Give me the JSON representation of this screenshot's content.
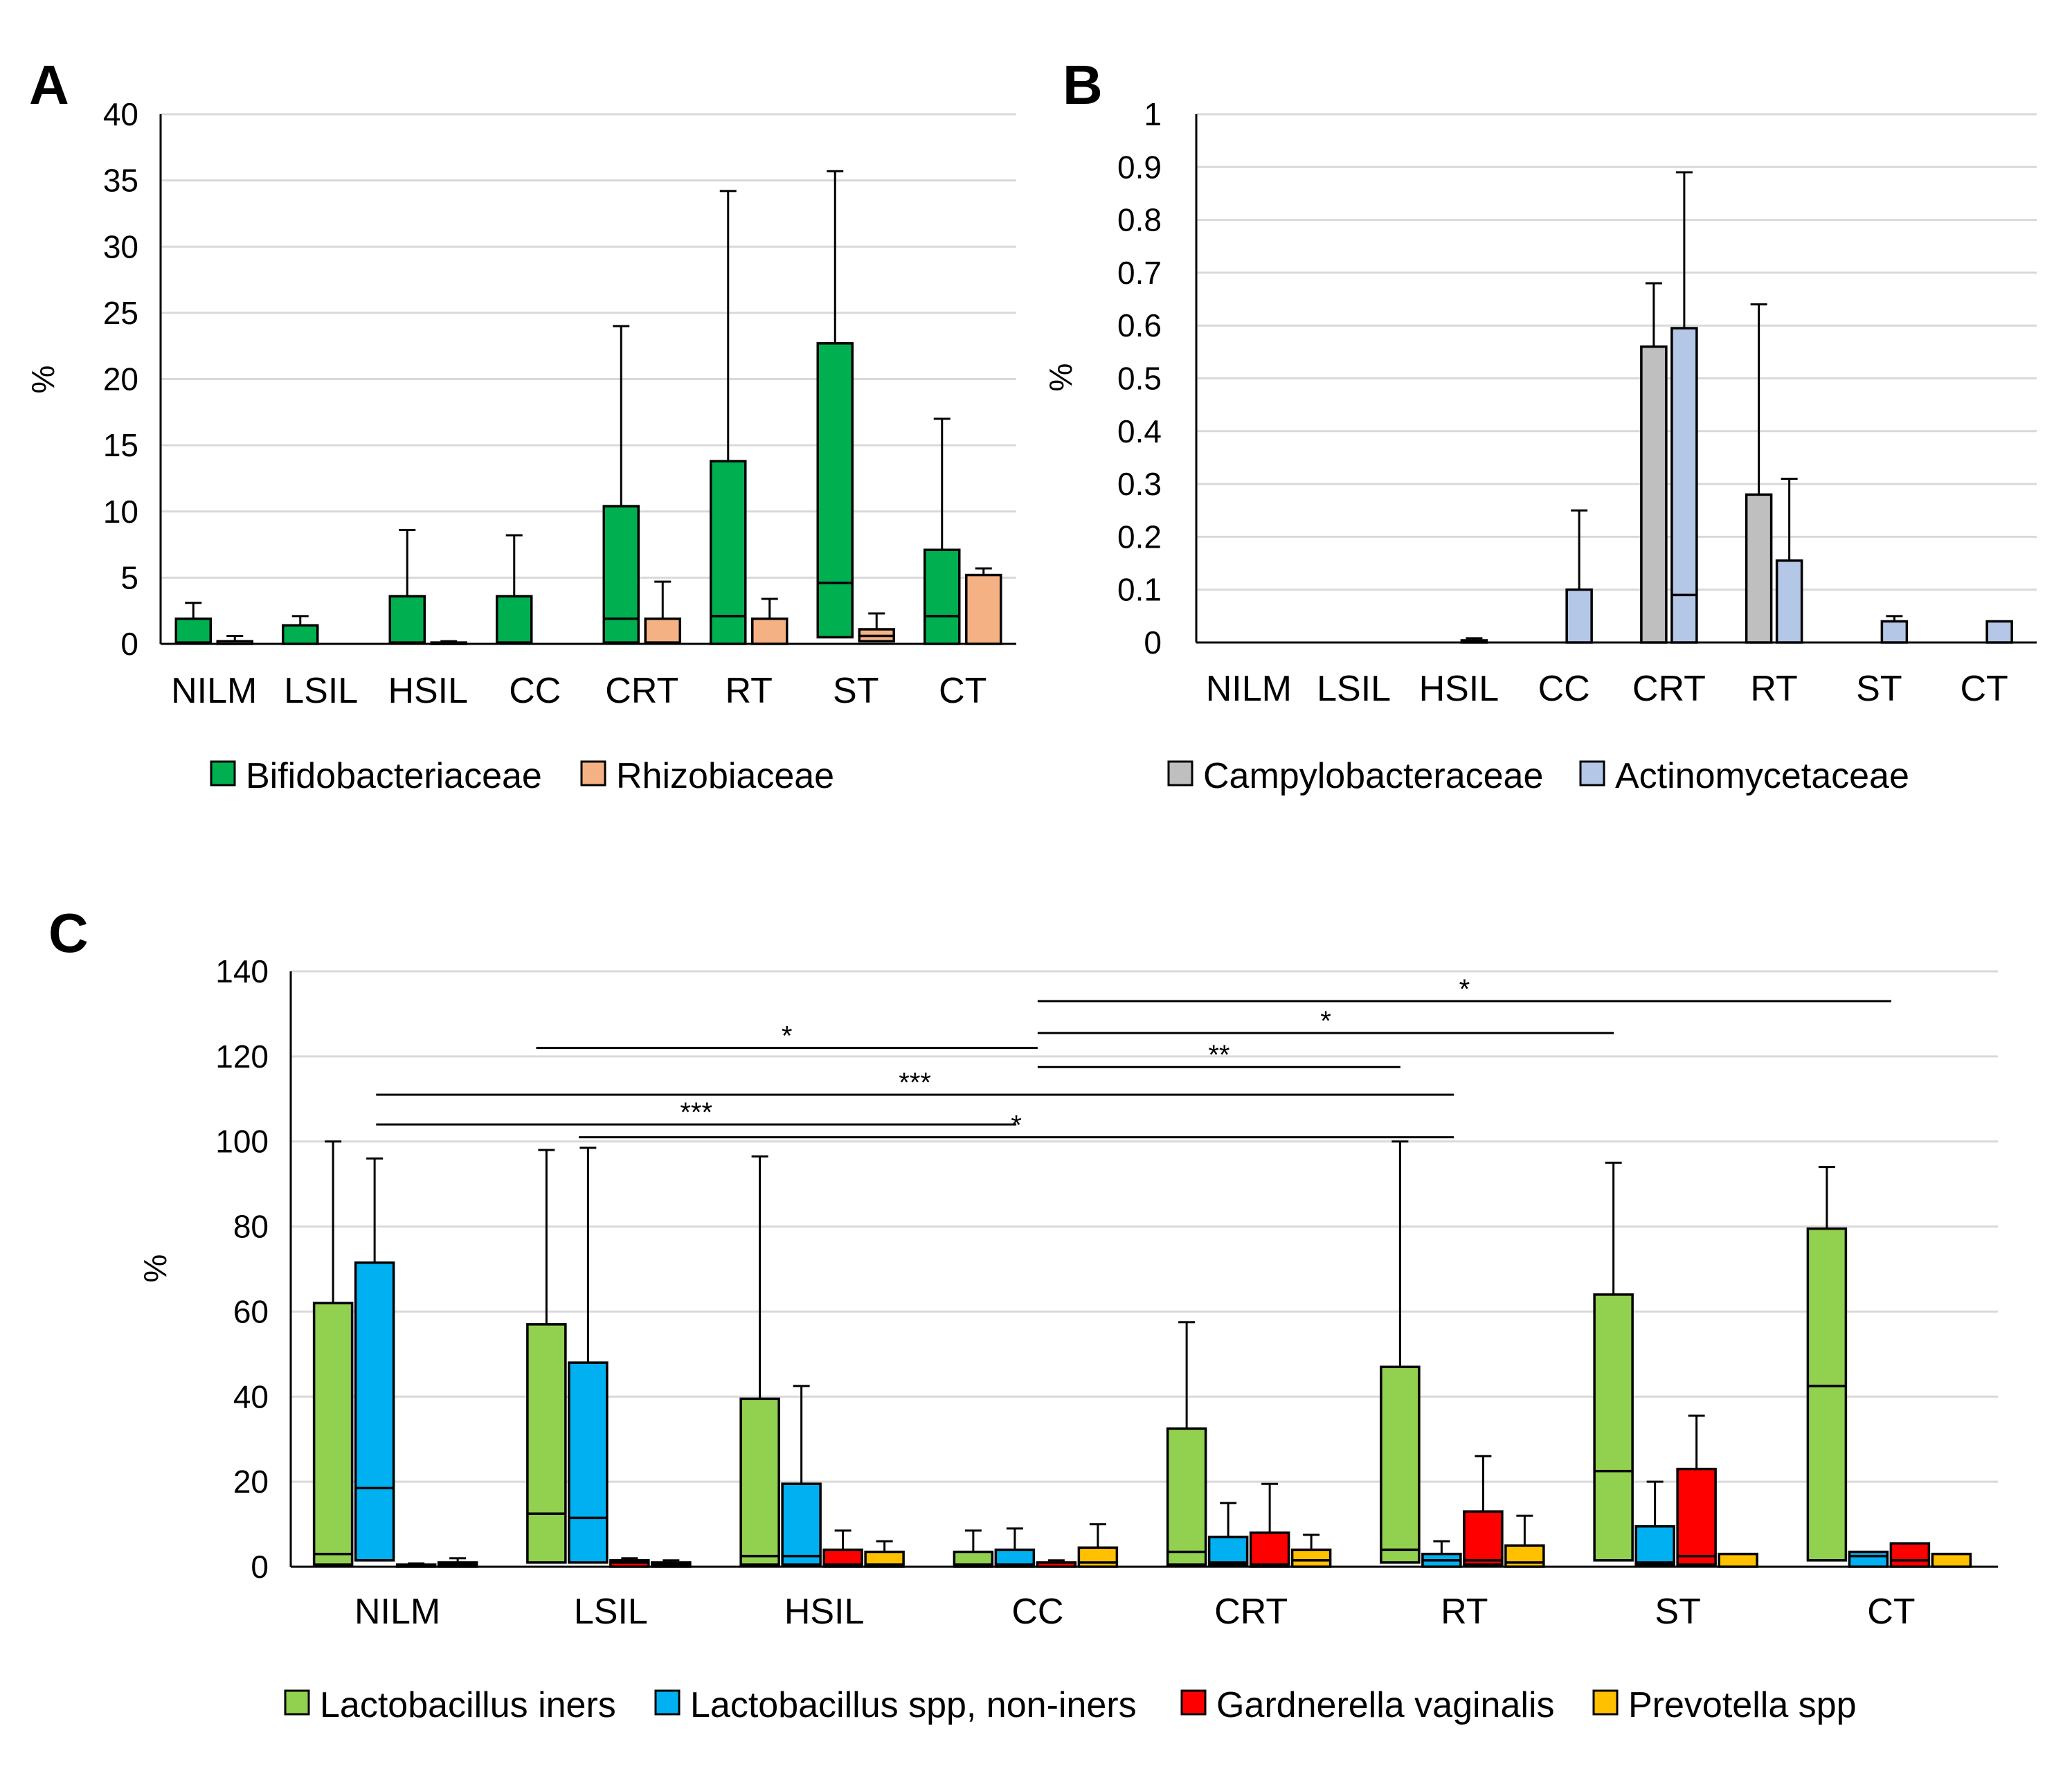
{
  "chart_data": [
    {
      "panel": "A",
      "type": "bar",
      "ylabel": "%",
      "ylim": [
        0,
        40
      ],
      "yticks": [
        0,
        5,
        10,
        15,
        20,
        25,
        30,
        35,
        40
      ],
      "categories": [
        "NILM",
        "LSIL",
        "HSIL",
        "CC",
        "CRT",
        "RT",
        "ST",
        "CT"
      ],
      "series": [
        {
          "name": "Bifidobacteriaceae",
          "color": "#00b050",
          "box": [
            [
              0.1,
              1.9
            ],
            [
              0,
              1.4
            ],
            [
              0.1,
              3.6
            ],
            [
              0.1,
              3.6
            ],
            [
              0.1,
              10.4
            ],
            [
              0,
              13.8
            ],
            [
              0.5,
              22.7
            ],
            [
              0,
              7.1
            ]
          ],
          "median": [
            0.1,
            0,
            0.1,
            0.1,
            1.9,
            2.1,
            4.6,
            2.1
          ],
          "whisker": [
            3.1,
            2.1,
            8.6,
            8.2,
            24.0,
            34.2,
            35.7,
            17.0
          ]
        },
        {
          "name": "Rhizobiaceae",
          "color": "#f4b183",
          "box": [
            [
              0,
              0.2
            ],
            [
              0,
              0
            ],
            [
              0,
              0.1
            ],
            [
              0,
              0
            ],
            [
              0.1,
              1.9
            ],
            [
              0,
              1.9
            ],
            [
              0.2,
              1.1
            ],
            [
              0,
              5.2
            ]
          ],
          "median": [
            0,
            0,
            0,
            0,
            0.1,
            0,
            0.6,
            0
          ],
          "whisker": [
            0.6,
            0,
            0.2,
            0,
            4.7,
            3.4,
            2.3,
            5.7
          ]
        }
      ]
    },
    {
      "panel": "B",
      "type": "bar",
      "ylabel": "%",
      "ylim": [
        0,
        1
      ],
      "yticks": [
        "0",
        "0.1",
        "0.2",
        "0.3",
        "0.4",
        "0.5",
        "0.6",
        "0.7",
        "0.8",
        "0.9",
        "1"
      ],
      "categories": [
        "NILM",
        "LSIL",
        "HSIL",
        "CC",
        "CRT",
        "RT",
        "ST",
        "CT"
      ],
      "series": [
        {
          "name": "Campylobacteraceae",
          "color": "#bfbfbf",
          "box": [
            [
              0,
              0
            ],
            [
              0,
              0
            ],
            [
              0,
              0
            ],
            [
              0,
              0
            ],
            [
              0,
              0.56
            ],
            [
              0,
              0.28
            ],
            [
              0,
              0
            ],
            [
              0,
              0
            ]
          ],
          "median": [
            0,
            0,
            0,
            0,
            0,
            0,
            0,
            0
          ],
          "whisker": [
            0,
            0,
            0,
            0,
            0.68,
            0.64,
            0,
            0
          ]
        },
        {
          "name": "Actinomycetaceae",
          "color": "#b4c7e7",
          "box": [
            [
              0,
              0
            ],
            [
              0,
              0
            ],
            [
              0,
              0.004
            ],
            [
              0,
              0.1
            ],
            [
              0,
              0.595
            ],
            [
              0,
              0.155
            ],
            [
              0,
              0.04
            ],
            [
              0,
              0.04
            ]
          ],
          "median": [
            0,
            0,
            0,
            0,
            0.09,
            0,
            0,
            0
          ],
          "whisker": [
            0,
            0,
            0.008,
            0.25,
            0.89,
            0.31,
            0.05,
            0.04
          ]
        }
      ]
    },
    {
      "panel": "C",
      "type": "bar",
      "ylabel": "%",
      "ylim": [
        0,
        140
      ],
      "yticks": [
        0,
        20,
        40,
        60,
        80,
        100,
        120,
        140
      ],
      "categories": [
        "NILM",
        "LSIL",
        "HSIL",
        "CC",
        "CRT",
        "RT",
        "ST",
        "CT"
      ],
      "series": [
        {
          "name": "Lactobacillus iners",
          "color": "#92d050",
          "box": [
            [
              0.5,
              62
            ],
            [
              1,
              57
            ],
            [
              0.5,
              39.5
            ],
            [
              0,
              3.5
            ],
            [
              0.5,
              32.5
            ],
            [
              1,
              47
            ],
            [
              1.5,
              64
            ],
            [
              1.5,
              79.5
            ]
          ],
          "median": [
            3,
            12.5,
            2.5,
            0.5,
            3.5,
            4,
            22.5,
            42.5
          ],
          "whisker": [
            100,
            98,
            96.5,
            8.5,
            57.5,
            100,
            95,
            94
          ]
        },
        {
          "name": "Lactobacillus spp, non-iners",
          "color": "#00b0f0",
          "box": [
            [
              1.5,
              71.5
            ],
            [
              1,
              48
            ],
            [
              0.5,
              19.5
            ],
            [
              0,
              4
            ],
            [
              0.5,
              7
            ],
            [
              0,
              3
            ],
            [
              0.5,
              9.5
            ],
            [
              0,
              3.5
            ]
          ],
          "median": [
            18.5,
            11.5,
            2.5,
            0.5,
            1,
            1.5,
            1,
            2.5
          ],
          "whisker": [
            96,
            98.5,
            42.5,
            9,
            15,
            6,
            20,
            3.5
          ]
        },
        {
          "name": "Gardnerella vaginalis",
          "color": "#ff0000",
          "box": [
            [
              0,
              0.5
            ],
            [
              0,
              1.5
            ],
            [
              0,
              4
            ],
            [
              0,
              1
            ],
            [
              0,
              8
            ],
            [
              0.5,
              13
            ],
            [
              0.5,
              23
            ],
            [
              0,
              5.5
            ]
          ],
          "median": [
            0,
            1,
            0.5,
            0,
            0.5,
            1.5,
            2.5,
            1.5
          ],
          "whisker": [
            0.8,
            2,
            8.5,
            1.5,
            19.5,
            26,
            35.5,
            5.5
          ]
        },
        {
          "name": "Prevotella spp",
          "color": "#ffc000",
          "box": [
            [
              0,
              1
            ],
            [
              0,
              1
            ],
            [
              0,
              3.5
            ],
            [
              0,
              4.5
            ],
            [
              0,
              4
            ],
            [
              0,
              5
            ],
            [
              0,
              3
            ],
            [
              0,
              3
            ]
          ],
          "median": [
            0.5,
            0.5,
            0.5,
            1,
            1.5,
            1,
            0,
            0
          ],
          "whisker": [
            2,
            1.5,
            6,
            10,
            7.5,
            12,
            3,
            3
          ]
        }
      ],
      "significance": [
        {
          "label": "*",
          "from": [
            "CC",
            0.0
          ],
          "to": [
            "CT",
            0.0
          ],
          "y": 133
        },
        {
          "label": "*",
          "from": [
            "CC",
            0.0
          ],
          "to": [
            "ST",
            -0.3
          ],
          "y": 125.5
        },
        {
          "label": "*",
          "from": [
            "LSIL",
            -0.35
          ],
          "to": [
            "CC",
            0.0
          ],
          "y": 122
        },
        {
          "label": "**",
          "from": [
            "CC",
            0.0
          ],
          "to": [
            "RT",
            -0.3
          ],
          "y": 117.5
        },
        {
          "label": "***",
          "from": [
            "NILM",
            -0.1
          ],
          "to": [
            "RT",
            -0.05
          ],
          "y": 111
        },
        {
          "label": "***",
          "from": [
            "NILM",
            -0.1
          ],
          "to": [
            "CC",
            -0.1
          ],
          "y": 104
        },
        {
          "label": "*",
          "from": [
            "LSIL",
            -0.15
          ],
          "to": [
            "RT",
            -0.05
          ],
          "y": 101
        }
      ]
    }
  ],
  "panel_labels": {
    "a": "A",
    "b": "B",
    "c": "C"
  }
}
